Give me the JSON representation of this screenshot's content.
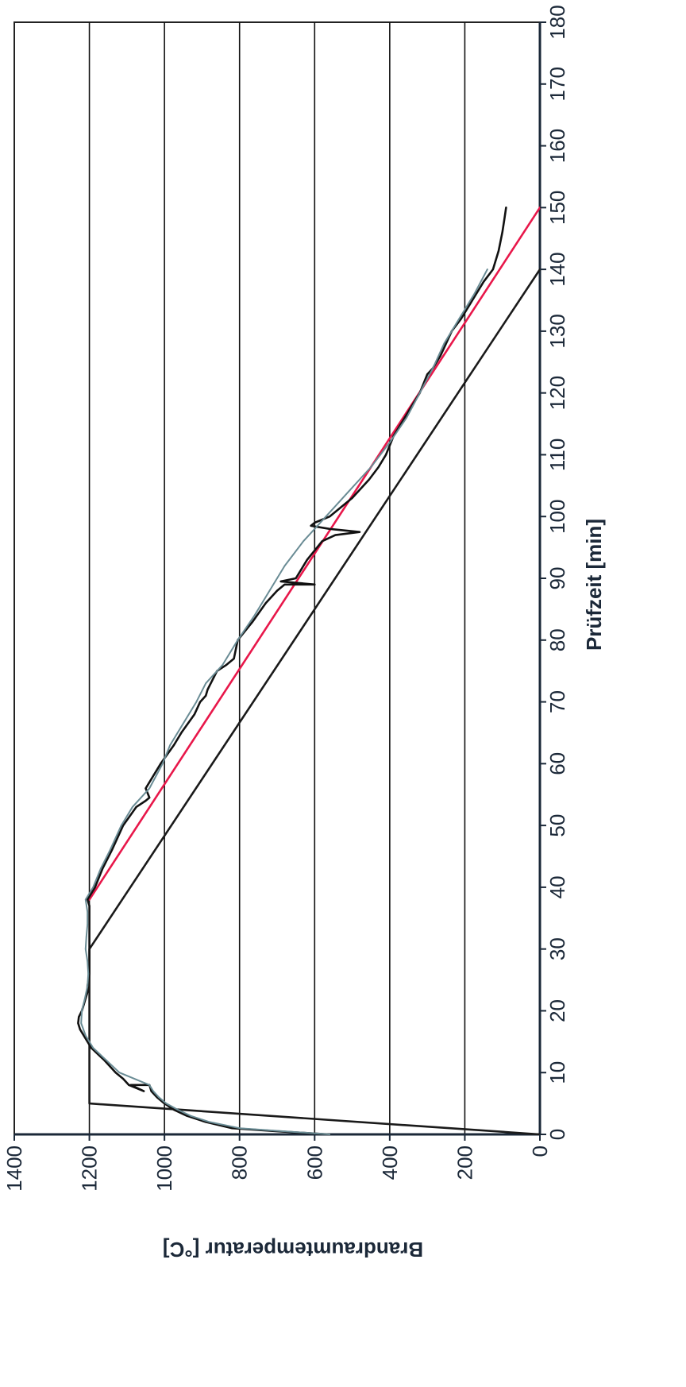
{
  "chart_data": {
    "type": "line",
    "orientation": "rotated-90-clockwise",
    "xlabel": "Prüfzeit [min]",
    "ylabel": "Brandraumtemperatur [°C]",
    "xlim": [
      0,
      180
    ],
    "ylim": [
      0,
      1400
    ],
    "xticks": [
      "0",
      "10",
      "20",
      "30",
      "40",
      "50",
      "60",
      "70",
      "80",
      "90",
      "100",
      "110",
      "120",
      "130",
      "140",
      "150",
      "160",
      "170",
      "180"
    ],
    "yticks": [
      "0",
      "200",
      "400",
      "600",
      "800",
      "1000",
      "1200",
      "1400"
    ],
    "grid": "horizontal lines at y ticks",
    "legend": "none",
    "series": [
      {
        "color": "#1a1a1a",
        "x": [
          0,
          5,
          30,
          140
        ],
        "y": [
          0,
          1200,
          1200,
          0
        ]
      },
      {
        "color": "#e8174a",
        "x": [
          38,
          150
        ],
        "y": [
          1200,
          0
        ]
      },
      {
        "color": "#111111",
        "x": [
          0,
          0.5,
          1,
          2,
          3,
          4,
          5,
          6,
          7,
          8,
          8,
          7,
          8,
          9,
          10,
          12,
          14,
          16,
          17,
          18,
          19,
          20,
          21,
          22,
          23,
          24,
          26,
          28,
          30,
          32,
          34,
          36,
          37,
          38,
          40,
          43,
          46,
          50,
          53,
          54,
          54.5,
          56,
          60,
          63,
          65,
          68,
          70,
          71,
          72,
          75,
          76,
          77,
          80,
          83,
          86,
          88,
          89,
          89,
          89.5,
          90,
          93,
          96,
          97,
          97.5,
          98,
          98.5,
          99,
          100,
          103,
          106,
          108,
          110,
          113,
          116,
          118,
          120,
          123,
          124,
          126,
          130,
          132,
          135,
          138,
          140,
          143,
          146,
          148,
          150
        ],
        "y": [
          560,
          700,
          820,
          890,
          940,
          975,
          1000,
          1020,
          1035,
          1040,
          1090,
          1055,
          1095,
          1110,
          1130,
          1160,
          1195,
          1215,
          1225,
          1230,
          1228,
          1220,
          1215,
          1210,
          1205,
          1205,
          1200,
          1200,
          1200,
          1200,
          1200,
          1200,
          1200,
          1205,
          1185,
          1165,
          1140,
          1110,
          1075,
          1050,
          1040,
          1050,
          1010,
          975,
          955,
          920,
          905,
          890,
          885,
          860,
          835,
          815,
          805,
          765,
          730,
          700,
          680,
          600,
          690,
          650,
          620,
          580,
          545,
          480,
          560,
          610,
          600,
          560,
          500,
          455,
          430,
          410,
          390,
          360,
          340,
          320,
          300,
          285,
          265,
          235,
          210,
          180,
          150,
          125,
          110,
          100,
          95,
          90
        ]
      },
      {
        "color": "#6a8c95",
        "x": [
          0,
          1,
          2,
          3,
          4,
          5,
          6,
          7,
          8,
          10,
          12,
          14,
          16,
          18,
          20,
          22,
          24,
          26,
          28,
          30,
          32,
          34,
          36,
          38,
          40,
          43,
          46,
          50,
          53,
          56,
          60,
          63,
          66,
          70,
          73,
          76,
          80,
          84,
          88,
          92,
          96,
          98,
          100,
          104,
          108,
          112,
          116,
          120,
          124,
          128,
          132,
          136,
          140
        ],
        "y": [
          560,
          800,
          880,
          930,
          965,
          995,
          1015,
          1030,
          1040,
          1120,
          1155,
          1190,
          1210,
          1222,
          1220,
          1212,
          1205,
          1203,
          1205,
          1210,
          1208,
          1205,
          1205,
          1210,
          1190,
          1170,
          1145,
          1115,
          1085,
          1040,
          1005,
          985,
          955,
          915,
          890,
          845,
          805,
          760,
          720,
          680,
          630,
          600,
          570,
          510,
          450,
          400,
          355,
          320,
          285,
          255,
          215,
          175,
          140
        ]
      }
    ]
  }
}
